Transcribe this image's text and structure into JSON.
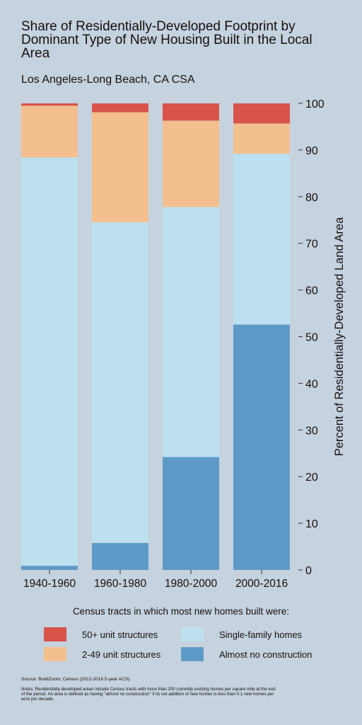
{
  "chart_data": {
    "type": "bar",
    "stacked": true,
    "title": "Share of Residentially-Developed Footprint by Dominant Type of New Housing Built in the Local Area",
    "subtitle": "Los Angeles-Long Beach, CA CSA",
    "ylabel": "Percent of Residentially-Developed Land Area",
    "ylim": [
      0,
      100
    ],
    "yticks": [
      0,
      10,
      20,
      30,
      40,
      50,
      60,
      70,
      80,
      90,
      100
    ],
    "y_axis_side": "right",
    "categories": [
      "1940-1960",
      "1960-1980",
      "1980-2000",
      "2000-2016"
    ],
    "series": [
      {
        "name": "Almost no construction",
        "color": "#5e9ac8",
        "values": [
          0.9,
          5.8,
          24.2,
          52.6
        ]
      },
      {
        "name": "Single-family homes",
        "color": "#bce0ef",
        "values": [
          87.5,
          68.7,
          53.6,
          36.6
        ]
      },
      {
        "name": "2-49 unit structures",
        "color": "#f3bf8f",
        "values": [
          11.1,
          23.6,
          18.5,
          6.5
        ]
      },
      {
        "name": "50+ unit structures",
        "color": "#d9534a",
        "values": [
          0.5,
          1.9,
          3.7,
          4.3
        ]
      }
    ],
    "legend_title": "Census tracts in which most new homes built were:",
    "legend_position": "bottom"
  },
  "source": "Source: BuildZoom; Census (2012-2016 5-year ACS).",
  "notes": "Notes: Residentially-developed areas include Census tracts with more than 200 currently existing homes per square mile at the end of the period. An area is defined as having \"almost no construction\" if its net addition of new homes is less than 0.1 new homes per acre per decade."
}
